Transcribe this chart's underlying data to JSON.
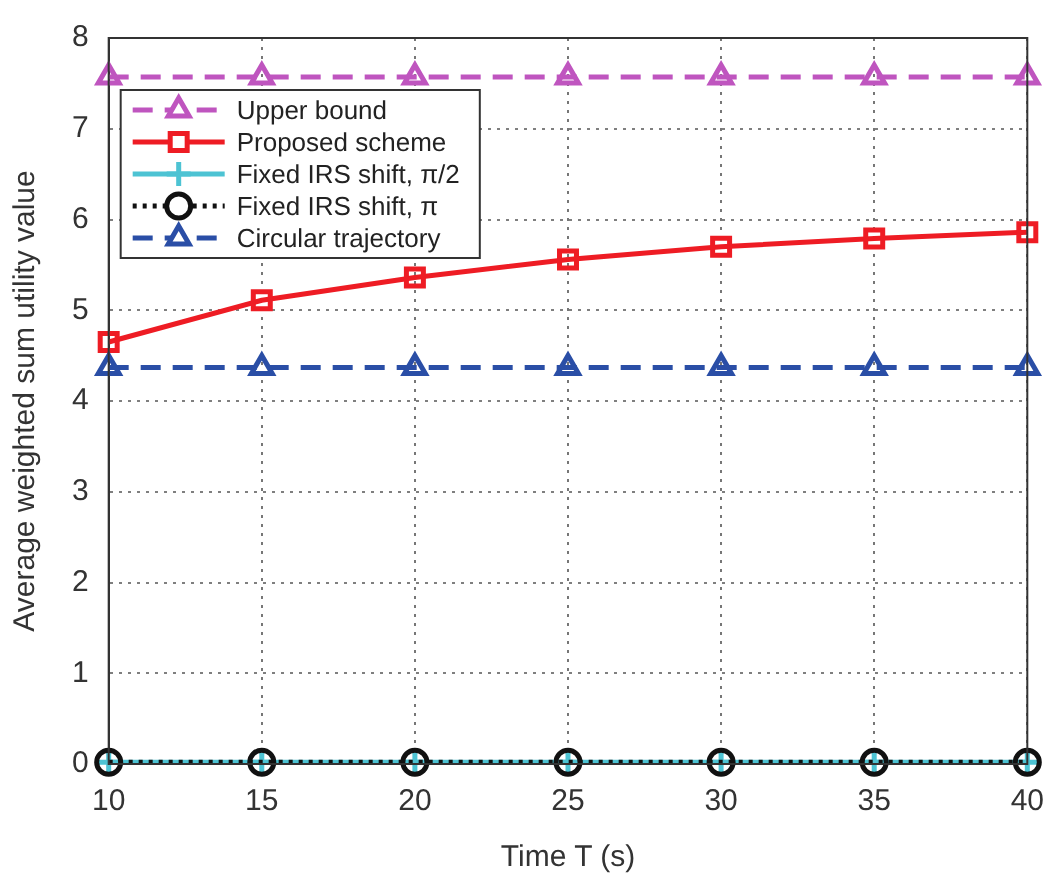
{
  "chart_data": {
    "type": "line",
    "xlabel": "Time T (s)",
    "ylabel": "Average weighted sum utility value",
    "x": [
      10,
      15,
      20,
      25,
      30,
      35,
      40
    ],
    "series": [
      {
        "name": "Upper bound",
        "color": "#bf55bf",
        "marker": "triangle",
        "line_style": "dashed",
        "values": [
          7.57,
          7.57,
          7.57,
          7.57,
          7.57,
          7.57,
          7.57
        ]
      },
      {
        "name": "Proposed scheme",
        "color": "#ee1c24",
        "marker": "square",
        "line_style": "solid",
        "values": [
          4.65,
          5.11,
          5.36,
          5.56,
          5.7,
          5.79,
          5.86
        ]
      },
      {
        "name": "Fixed IRS shift, π/2",
        "color": "#4dc3d3",
        "marker": "cross",
        "line_style": "solid",
        "values": [
          0.02,
          0.02,
          0.02,
          0.02,
          0.02,
          0.02,
          0.02
        ]
      },
      {
        "name": "Fixed IRS shift, π",
        "color": "#111111",
        "marker": "circle",
        "line_style": "dotted",
        "values": [
          0.02,
          0.02,
          0.02,
          0.02,
          0.02,
          0.02,
          0.02
        ]
      },
      {
        "name": "Circular trajectory",
        "color": "#2a4ea6",
        "marker": "triangle",
        "line_style": "dashed",
        "values": [
          4.37,
          4.37,
          4.37,
          4.37,
          4.37,
          4.37,
          4.37
        ]
      }
    ],
    "xlim": [
      10,
      40
    ],
    "xticks": [
      10,
      15,
      20,
      25,
      30,
      35,
      40
    ],
    "ylim": [
      0,
      8
    ],
    "yticks": [
      0,
      1,
      2,
      3,
      4,
      5,
      6,
      7,
      8
    ],
    "grid": true,
    "legend": "top left"
  }
}
